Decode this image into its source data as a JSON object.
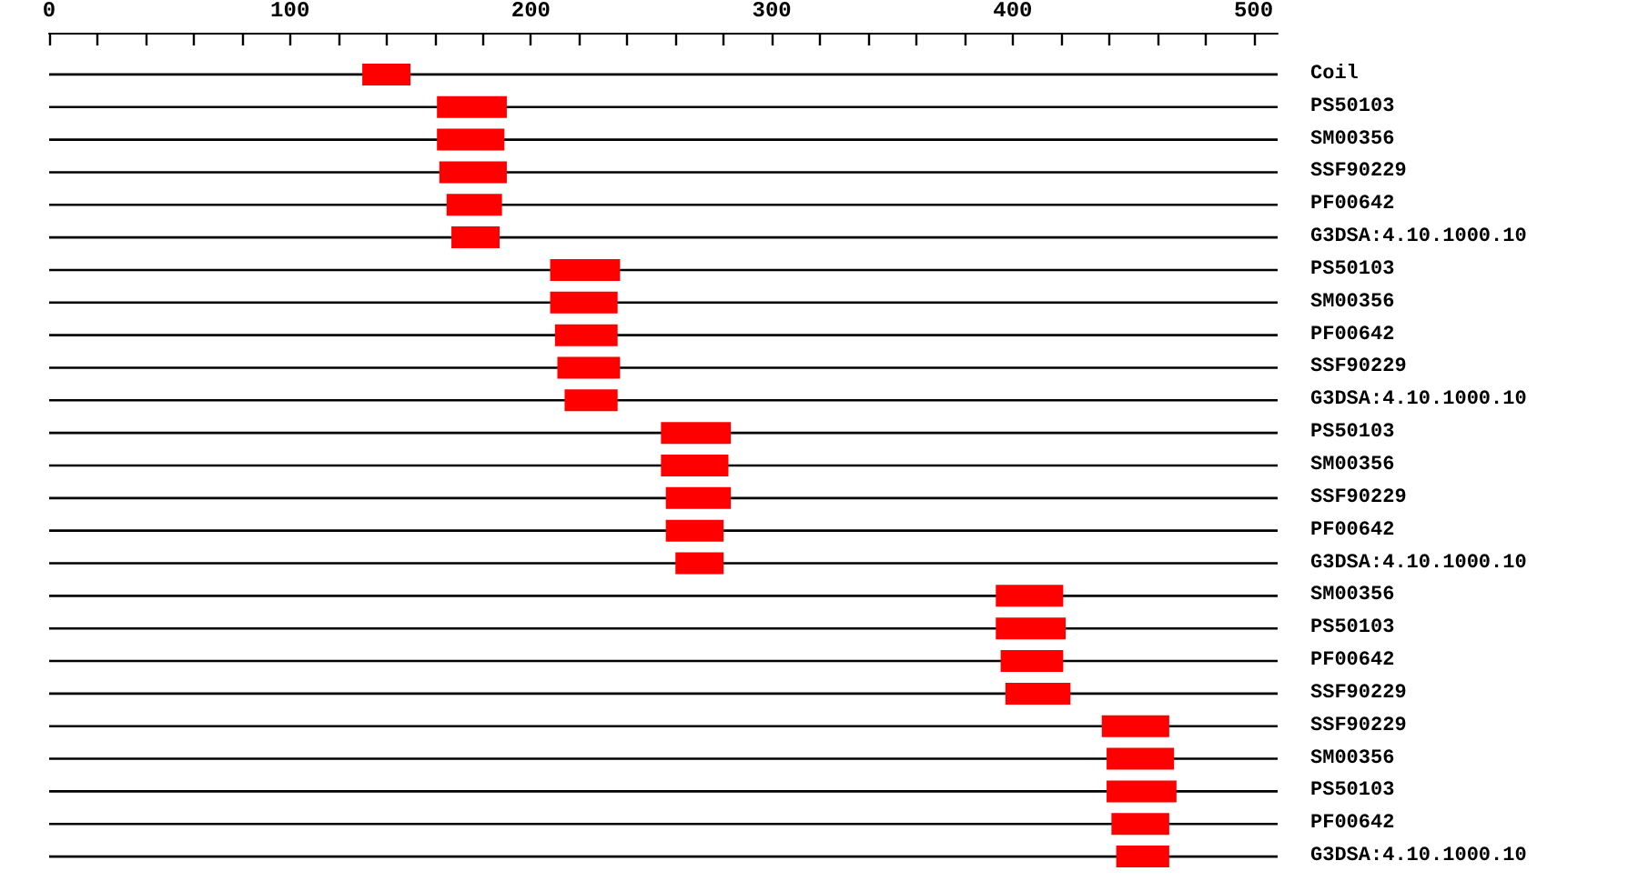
{
  "chart_data": {
    "type": "bar",
    "orientation": "horizontal",
    "grid": "y",
    "xlim": [
      0,
      510
    ],
    "xticks": [
      0,
      {
        "value": 20,
        "label": null
      },
      {
        "value": 40,
        "label": null
      },
      {
        "value": 60,
        "label": null
      },
      {
        "value": 80,
        "label": null
      },
      100,
      {
        "value": 120,
        "label": null
      },
      {
        "value": 140,
        "label": null
      },
      {
        "value": 160,
        "label": null
      },
      {
        "value": 180,
        "label": null
      },
      200,
      {
        "value": 220,
        "label": null
      },
      {
        "value": 240,
        "label": null
      },
      {
        "value": 260,
        "label": null
      },
      {
        "value": 280,
        "label": null
      },
      300,
      {
        "value": 320,
        "label": null
      },
      {
        "value": 340,
        "label": null
      },
      {
        "value": 360,
        "label": null
      },
      {
        "value": 380,
        "label": null
      },
      400,
      {
        "value": 420,
        "label": null
      },
      {
        "value": 440,
        "label": null
      },
      {
        "value": 460,
        "label": null
      },
      {
        "value": 480,
        "label": null
      },
      500
    ],
    "categories": [
      "Coil",
      "PS50103",
      "SM00356",
      "SSF90229",
      "PF00642",
      "G3DSA:4.10.1000.10",
      "PS50103",
      "SM00356",
      "PF00642",
      "SSF90229",
      "G3DSA:4.10.1000.10",
      "PS50103",
      "SM00356",
      "SSF90229",
      "PF00642",
      "G3DSA:4.10.1000.10",
      "SM00356",
      "PS50103",
      "PF00642",
      "SSF90229",
      "SSF90229",
      "SM00356",
      "PS50103",
      "PF00642",
      "G3DSA:4.10.1000.10"
    ],
    "base": [
      130,
      161,
      161,
      162,
      165,
      167,
      208,
      208,
      210,
      211,
      214,
      254,
      254,
      256,
      256,
      260,
      393,
      393,
      395,
      397,
      437,
      439,
      439,
      441,
      443
    ],
    "values": [
      20,
      29,
      28,
      28,
      23,
      20,
      29,
      28,
      26,
      26,
      22,
      29,
      28,
      27,
      24,
      20,
      28,
      29,
      26,
      27,
      28,
      28,
      29,
      24,
      22
    ],
    "color": "#ff0000"
  }
}
